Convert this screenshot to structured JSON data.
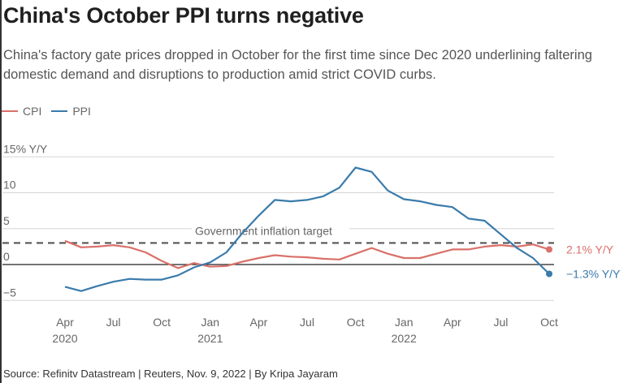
{
  "title": "China's October PPI turns negative",
  "subtitle": "China's factory gate prices dropped in October for the first time since Dec 2020 underlining faltering domestic demand and disruptions to production amid strict COVID curbs.",
  "footer": "Source: Refinitv Datastream | Reuters, Nov. 9, 2022 | By Kripa Jayaram",
  "colors": {
    "cpi": "#d9706a",
    "ppi": "#3a7bab",
    "target": "#555555",
    "grid": "#d6d6d6",
    "zero": "#222222"
  },
  "chart_data": {
    "type": "line",
    "title": "China's October PPI turns negative",
    "xlabel": "",
    "ylabel": "% Y/Y",
    "ylim": [
      -5,
      15
    ],
    "yticks": [
      -5,
      0,
      5,
      10,
      15
    ],
    "ytick_labels": [
      "−5",
      "0",
      "5",
      "10",
      "15% Y/Y"
    ],
    "grid": true,
    "legend": "top-left",
    "x": [
      "2020-04",
      "2020-05",
      "2020-06",
      "2020-07",
      "2020-08",
      "2020-09",
      "2020-10",
      "2020-11",
      "2020-12",
      "2021-01",
      "2021-02",
      "2021-03",
      "2021-04",
      "2021-05",
      "2021-06",
      "2021-07",
      "2021-08",
      "2021-09",
      "2021-10",
      "2021-11",
      "2021-12",
      "2022-01",
      "2022-02",
      "2022-03",
      "2022-04",
      "2022-05",
      "2022-06",
      "2022-07",
      "2022-08",
      "2022-09",
      "2022-10"
    ],
    "xticks": [
      {
        "index": 0,
        "label": "Apr",
        "year": "2020"
      },
      {
        "index": 3,
        "label": "Jul",
        "year": ""
      },
      {
        "index": 6,
        "label": "Oct",
        "year": ""
      },
      {
        "index": 9,
        "label": "Jan",
        "year": "2021"
      },
      {
        "index": 12,
        "label": "Apr",
        "year": ""
      },
      {
        "index": 15,
        "label": "Jul",
        "year": ""
      },
      {
        "index": 18,
        "label": "Oct",
        "year": ""
      },
      {
        "index": 21,
        "label": "Jan",
        "year": "2022"
      },
      {
        "index": 24,
        "label": "Apr",
        "year": ""
      },
      {
        "index": 27,
        "label": "Jul",
        "year": ""
      },
      {
        "index": 30,
        "label": "Oct",
        "year": ""
      }
    ],
    "series": [
      {
        "name": "CPI",
        "color_key": "cpi",
        "end_label": "2.1% Y/Y",
        "values": [
          3.3,
          2.4,
          2.5,
          2.7,
          2.4,
          1.7,
          0.5,
          -0.5,
          0.2,
          -0.3,
          -0.2,
          0.4,
          0.9,
          1.3,
          1.1,
          1.0,
          0.8,
          0.7,
          1.5,
          2.3,
          1.5,
          0.9,
          0.9,
          1.5,
          2.1,
          2.1,
          2.5,
          2.7,
          2.5,
          2.8,
          2.1
        ]
      },
      {
        "name": "PPI",
        "color_key": "ppi",
        "end_label": "−1.3% Y/Y",
        "values": [
          -3.1,
          -3.7,
          -3.0,
          -2.4,
          -2.0,
          -2.1,
          -2.1,
          -1.5,
          -0.4,
          0.3,
          1.7,
          4.4,
          6.8,
          9.0,
          8.8,
          9.0,
          9.5,
          10.7,
          13.5,
          12.9,
          10.3,
          9.1,
          8.8,
          8.3,
          8.0,
          6.4,
          6.1,
          4.2,
          2.3,
          0.9,
          -1.3
        ]
      }
    ],
    "annotations": [
      {
        "type": "hline",
        "value": 3,
        "label": "Government inflation target",
        "style": "dashed"
      }
    ]
  }
}
